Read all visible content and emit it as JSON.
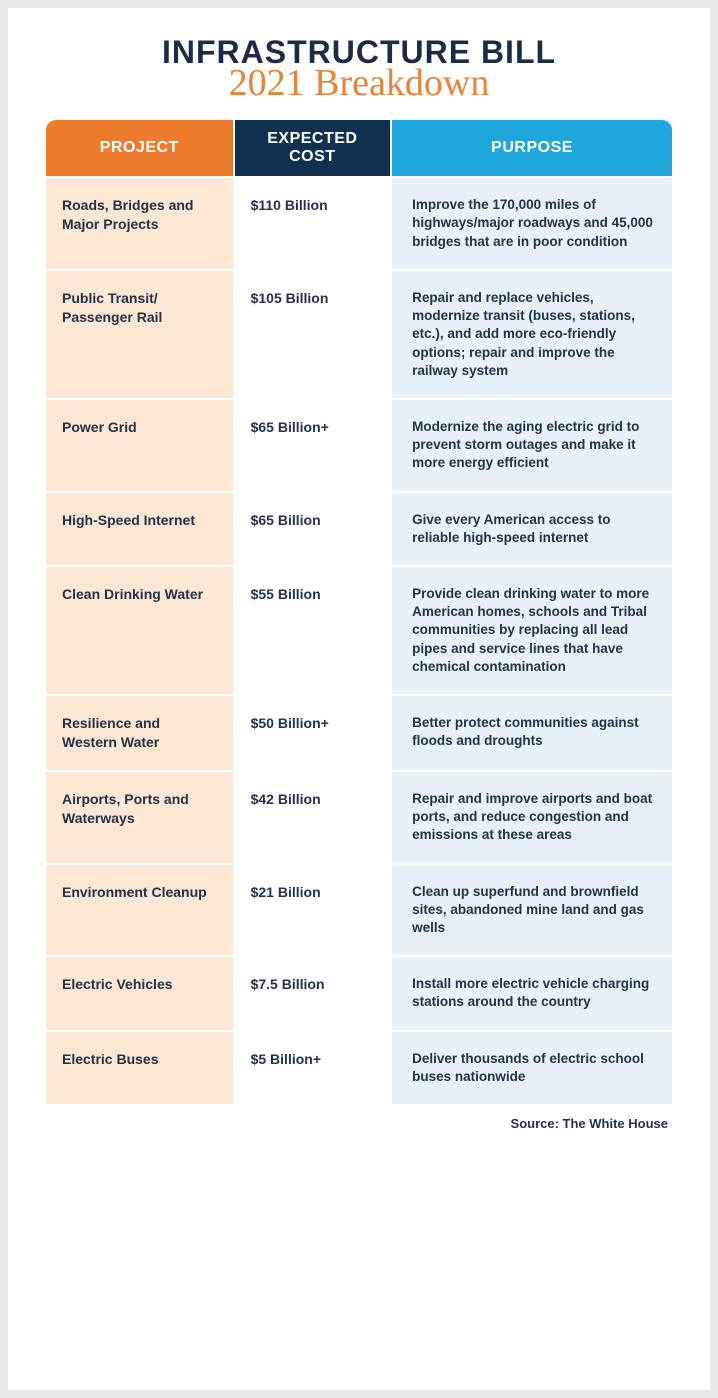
{
  "header": {
    "title_main": "INFRASTRUCTURE BILL",
    "title_sub": "2021 Breakdown"
  },
  "table": {
    "columns": {
      "project": "PROJECT",
      "cost": "EXPECTED COST",
      "purpose": "PURPOSE"
    },
    "header_colors": {
      "project": "#ee7c2f",
      "cost": "#12304f",
      "purpose": "#1ea6dd"
    },
    "cell_colors": {
      "project": "#fce6d4",
      "cost": "#ffffff",
      "purpose": "#e9f1f8"
    },
    "rows": [
      {
        "project": "Roads, Bridges and Major Projects",
        "cost": "$110 Billion",
        "purpose": "Improve the 170,000 miles of highways/major roadways and 45,000 bridges that are in poor condition"
      },
      {
        "project": "Public Transit/ Passenger Rail",
        "cost": "$105 Billion",
        "purpose": "Repair and replace vehicles, modernize transit (buses, stations, etc.), and add more eco-friendly options; repair and improve the railway system"
      },
      {
        "project": "Power Grid",
        "cost": "$65 Billion+",
        "purpose": "Modernize the aging electric grid to prevent storm outages and make it more energy efficient"
      },
      {
        "project": "High-Speed Internet",
        "cost": "$65 Billion",
        "purpose": "Give every American access to reliable high-speed internet"
      },
      {
        "project": "Clean Drinking Water",
        "cost": "$55 Billion",
        "purpose": "Provide clean drinking water to more American homes, schools and Tribal communities by replacing all lead pipes and service lines that have chemical contamination"
      },
      {
        "project": "Resilience and Western Water",
        "cost": "$50 Billion+",
        "purpose": "Better protect communities against floods and droughts"
      },
      {
        "project": "Airports, Ports and Waterways",
        "cost": "$42 Billion",
        "purpose": "Repair and improve airports and boat ports, and reduce congestion and emissions at these areas"
      },
      {
        "project": "Environment Cleanup",
        "cost": "$21 Billion",
        "purpose": "Clean up superfund and brownfield sites, abandoned mine land and gas wells"
      },
      {
        "project": "Electric Vehicles",
        "cost": "$7.5 Billion",
        "purpose": "Install more electric vehicle charging stations around the country"
      },
      {
        "project": "Electric Buses",
        "cost": "$5 Billion+",
        "purpose": "Deliver thousands of electric school buses nationwide"
      }
    ]
  },
  "source": "Source: The White House",
  "style": {
    "page_bg": "#e8e8e8",
    "card_bg": "#ffffff",
    "title_color": "#1a2d45",
    "subtitle_color": "#e8833a",
    "text_color": "#233349",
    "title_fontsize": 32,
    "subtitle_fontsize": 38,
    "body_fontsize": 14
  }
}
